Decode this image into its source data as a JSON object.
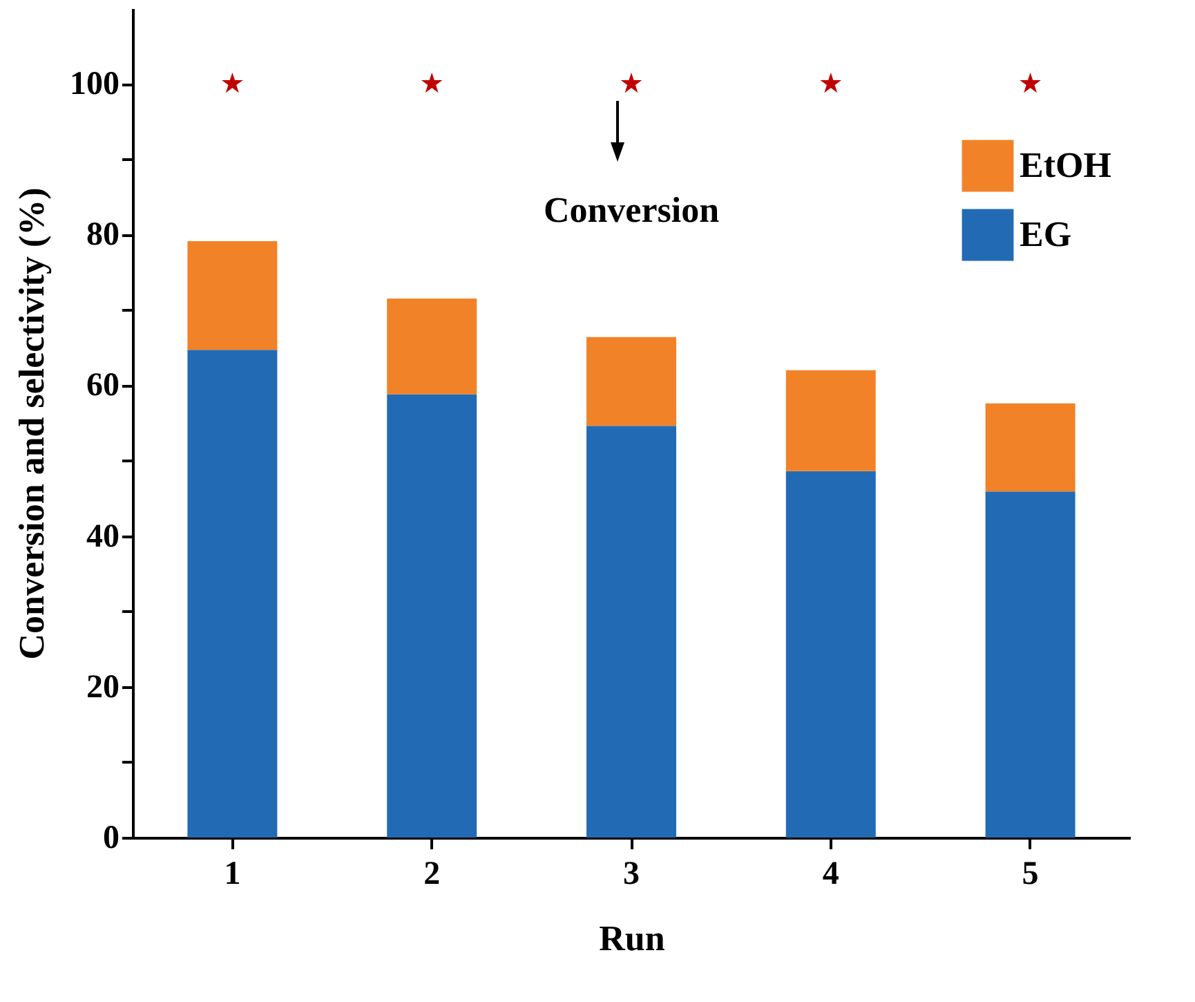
{
  "chart_data": {
    "type": "bar",
    "stacked": true,
    "xlabel": "Run",
    "ylabel": "Conversion and selectivity (%)",
    "categories": [
      "1",
      "2",
      "3",
      "4",
      "5"
    ],
    "series": [
      {
        "name": "EG",
        "color": "#226bb4",
        "values": [
          64.7,
          58.8,
          54.6,
          48.6,
          45.9
        ]
      },
      {
        "name": "EtOH",
        "color": "#f28228",
        "values": [
          14.4,
          12.7,
          11.8,
          13.4,
          11.7
        ]
      },
      {
        "type": "scatter",
        "color": "#c00000",
        "marker": "star",
        "x": [
          "1",
          "2",
          "3",
          "4",
          "5"
        ],
        "values": [
          100,
          100,
          100,
          100,
          100
        ]
      }
    ],
    "ylim": [
      0,
      110
    ],
    "yticks": [
      0,
      {
        "value": 10,
        "label": null
      },
      20,
      {
        "value": 30,
        "label": null
      },
      40,
      {
        "value": 50,
        "label": null
      },
      60,
      {
        "value": 70,
        "label": null
      },
      80,
      {
        "value": 90,
        "label": null
      },
      100
    ],
    "annotations": [
      {
        "text": "Conversion",
        "x": "3",
        "y": 100
      }
    ],
    "legend": "top right",
    "grid": false
  }
}
